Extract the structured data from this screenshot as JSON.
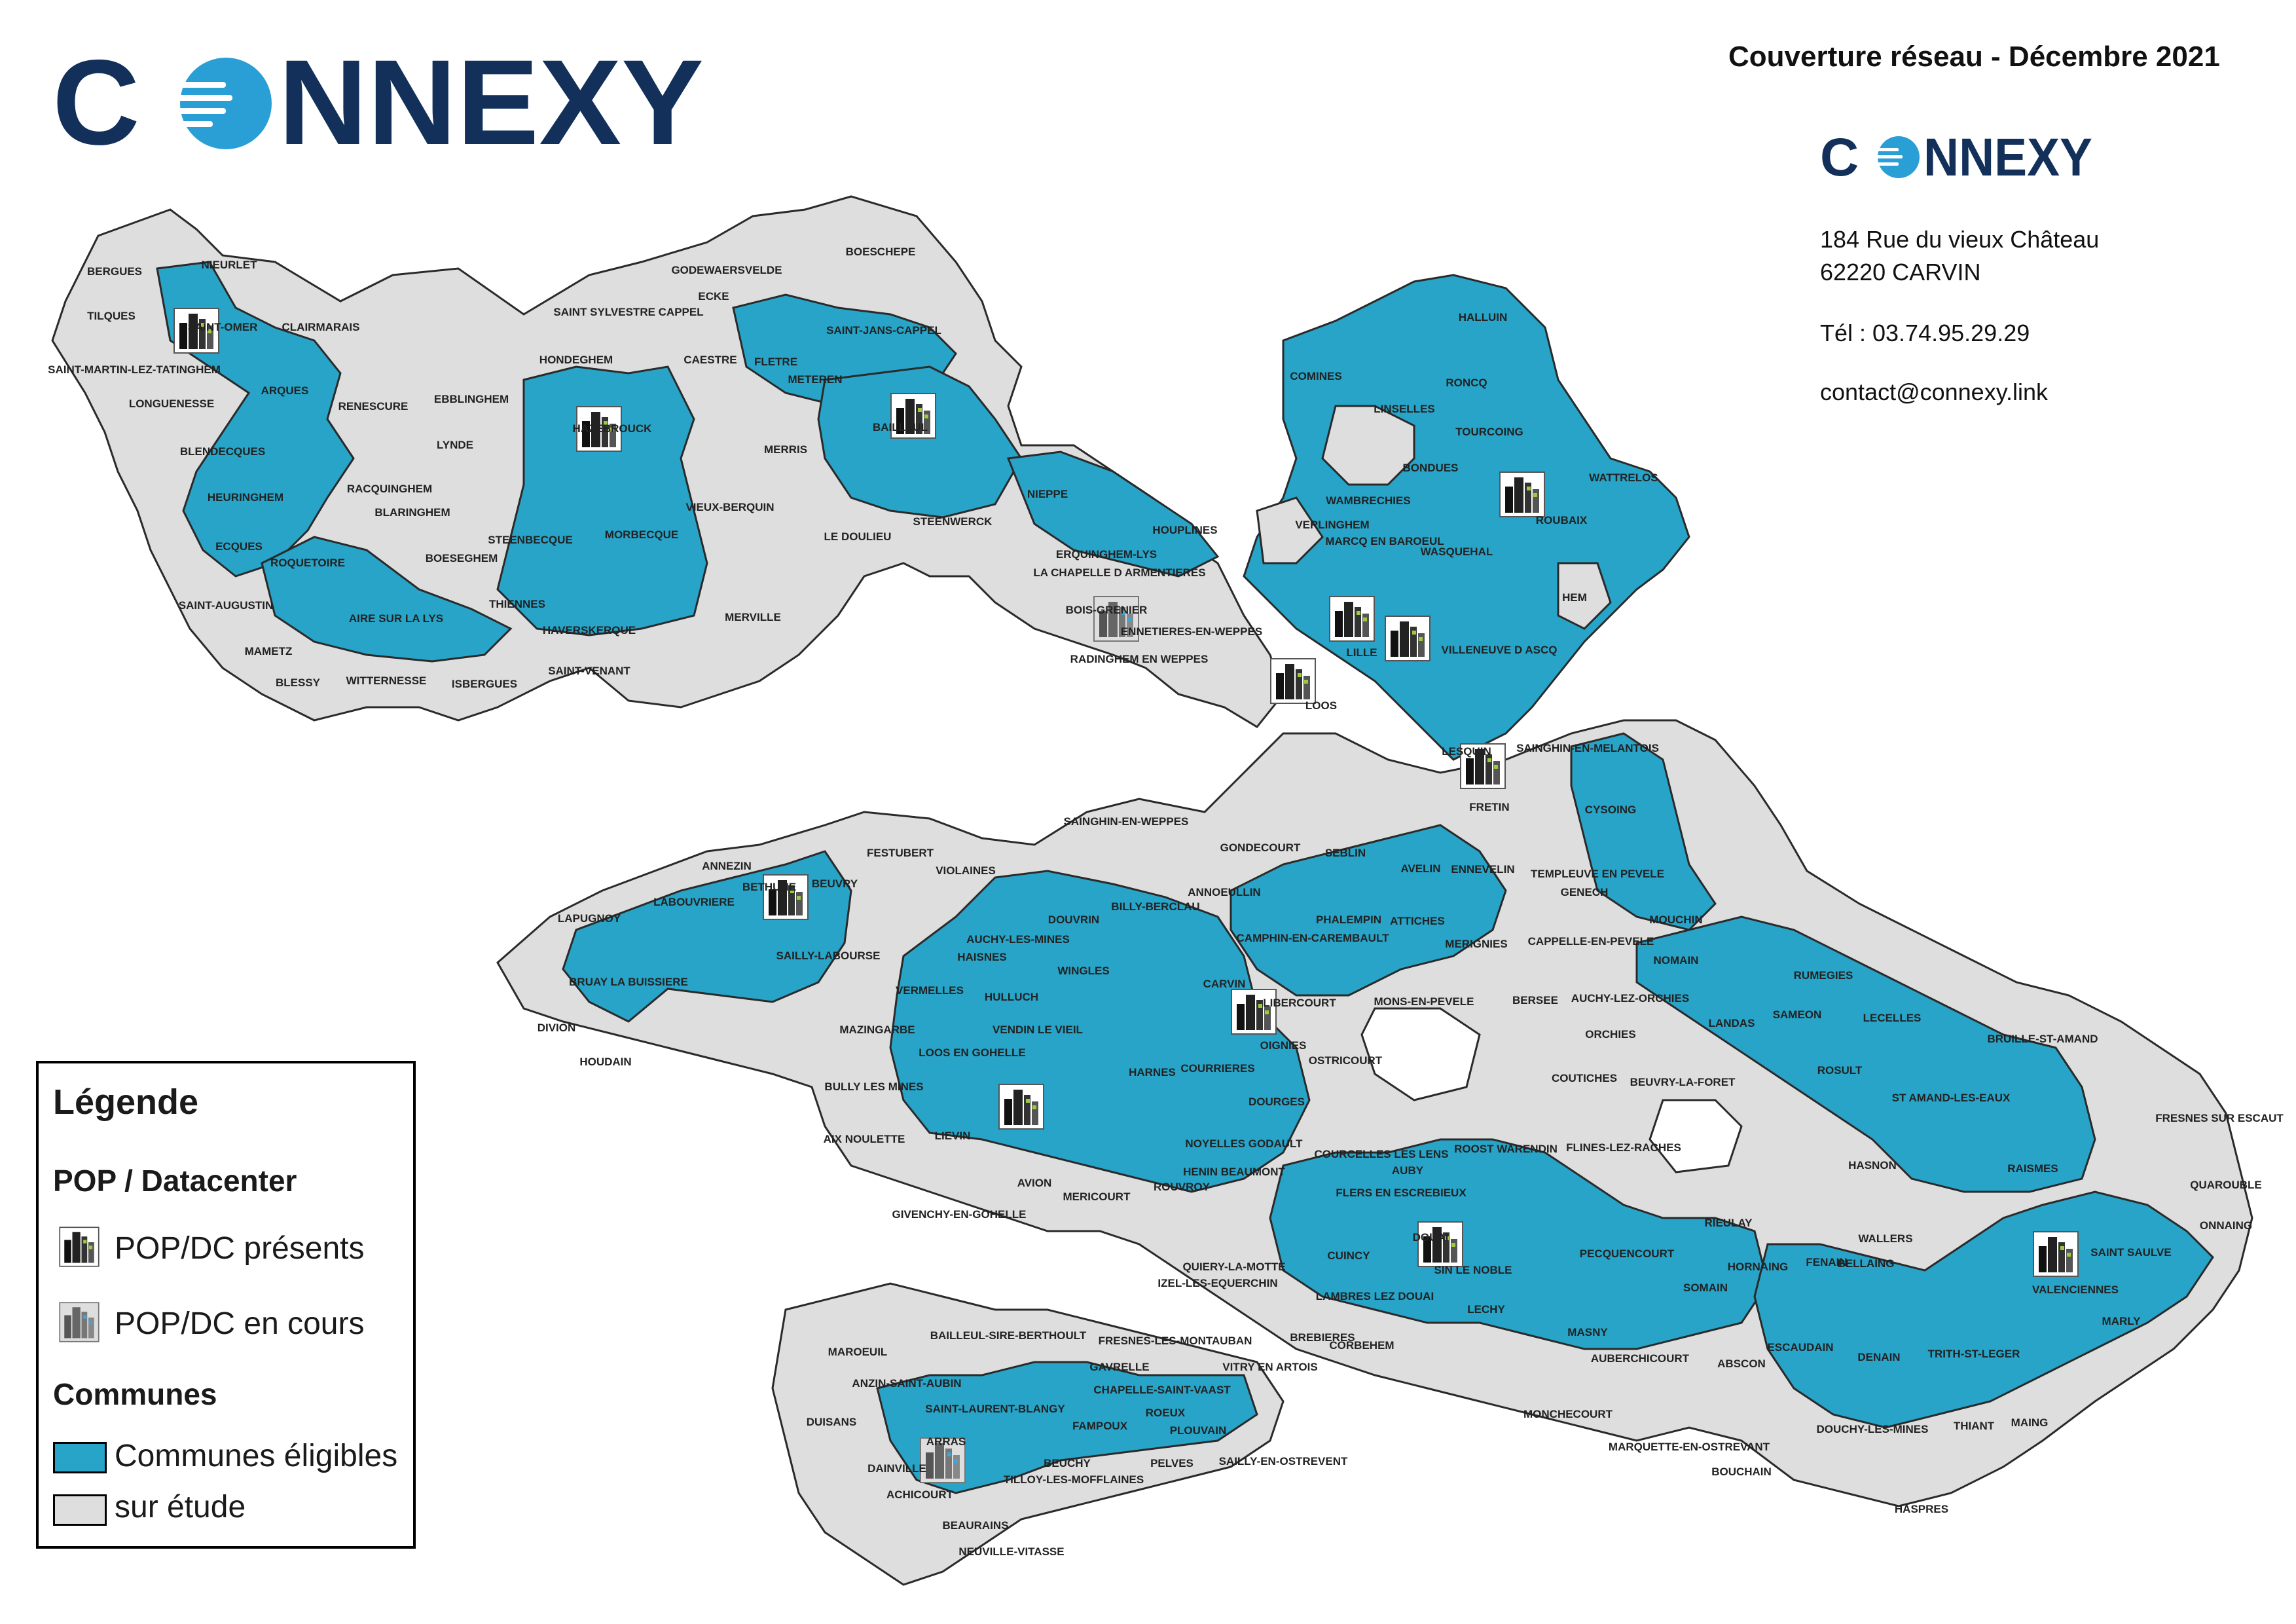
{
  "brand": {
    "name": "CONNEXY"
  },
  "header": {
    "title": "Couverture réseau - Décembre 2021"
  },
  "contact": {
    "address_line1": "184 Rue du vieux Château",
    "address_line2": "62220 CARVIN",
    "phone": "Tél : 03.74.95.29.29",
    "email": "contact@connexy.link"
  },
  "legend": {
    "title": "Légende",
    "pop_section": "POP / Datacenter",
    "pop_present": "POP/DC présents",
    "pop_in_progress": "POP/DC en cours",
    "communes_section": "Communes",
    "eligible": "Communes éligibles",
    "study": "sur étude"
  },
  "colors": {
    "eligible": "#27a4c8",
    "study": "#dedede",
    "border": "#2a2a2a",
    "brand_navy": "#12305a",
    "brand_blue": "#2a9fd6"
  },
  "map": {
    "labels": [
      "BERGUES",
      "NIEURLET",
      "TILQUES",
      "SAINT-OMER",
      "CLAIRMARAIS",
      "SAINT-MARTIN-LEZ-TATINGHEM",
      "LONGUENESSE",
      "ARQUES",
      "RENESCURE",
      "EBBLINGHEM",
      "LYNDE",
      "BLENDECQUES",
      "RACQUINGHEM",
      "HEURINGHEM",
      "BLARINGHEM",
      "ECQUES",
      "ROQUETOIRE",
      "BOESEGHEM",
      "SAINT-AUGUSTIN",
      "MAMETZ",
      "AIRE SUR LA LYS",
      "THIENNES",
      "STEENBECQUE",
      "MORBECQUE",
      "HONDEGHEM",
      "HAZEBROUCK",
      "SAINT SYLVESTRE CAPPEL",
      "GODEWAERSVELDE",
      "BOESCHEPE",
      "ECKE",
      "CAESTRE",
      "FLETRE",
      "METEREN",
      "SAINT-JANS-CAPPEL",
      "BAILLEUL",
      "MERRIS",
      "VIEUX-BERQUIN",
      "LE DOULIEU",
      "STEENWERCK",
      "NIEPPE",
      "MERVILLE",
      "HAVERSKERQUE",
      "SAINT-VENANT",
      "ISBERGUES",
      "WITTERNESSE",
      "BLESSY",
      "HOUPLINES",
      "ERQUINGHEM-LYS",
      "LA CHAPELLE D ARMENTIERES",
      "BOIS-GRENIER",
      "ENNETIERES-EN-WEPPES",
      "RADINGHEM EN WEPPES",
      "COMINES",
      "HALLUIN",
      "RONCQ",
      "LINSELLES",
      "TOURCOING",
      "BONDUES",
      "WAMBRECHIES",
      "VERLINGHEM",
      "MARCQ EN BAROEUL",
      "WASQUEHAL",
      "ROUBAIX",
      "WATTRELOS",
      "HEM",
      "LILLE",
      "VILLENEUVE D ASCQ",
      "LOOS",
      "LESQUIN",
      "SAINGHIN-EN-MELANTOIS",
      "FRETIN",
      "CYSOING",
      "SEBLIN",
      "AVELIN",
      "ENNEVELIN",
      "TEMPLEUVE EN PEVELE",
      "GENECH",
      "MOUCHIN",
      "CAPPELLE-EN-PEVELE",
      "NOMAIN",
      "ATTICHES",
      "MERIGNIES",
      "PHALEMPIN",
      "CAMPHIN-EN-CAREMBAULT",
      "MONS-EN-PEVELE",
      "BERSEE",
      "AUCHY-LEZ-ORCHIES",
      "ORCHIES",
      "LANDAS",
      "SAMEON",
      "RUMEGIES",
      "LECELLES",
      "BRUILLE-ST-AMAND",
      "ROSULT",
      "ST AMAND-LES-EAUX",
      "FRESNES SUR ESCAUT",
      "RAISMES",
      "QUAROUBLE",
      "ONNAING",
      "SAINT SAULVE",
      "VALENCIENNES",
      "MARLY",
      "HASNON",
      "WALLERS",
      "BELLAING",
      "HORNAING",
      "FENAIN",
      "BEUVRY-LA-FORET",
      "COUTICHES",
      "FLINES-LEZ-RACHES",
      "RIEULAY",
      "SOMAIN",
      "PECQUENCOURT",
      "MASNY",
      "AUBERCHICOURT",
      "ABSCON",
      "ESCAUDAIN",
      "DENAIN",
      "TRITH-ST-LEGER",
      "THIANT",
      "MAING",
      "DOUCHY-LES-MINES",
      "HASPRES",
      "BOUCHAIN",
      "MARQUETTE-EN-OSTREVANT",
      "MONCHECOURT",
      "DOUAI",
      "SIN LE NOBLE",
      "LAMBRES LEZ DOUAI",
      "CUINCY",
      "LECHY",
      "ROOST WARENDIN",
      "AUBY",
      "COURCELLES LES LENS",
      "FLERS EN ESCREBIEUX",
      "SAINGHIN-EN-WEPPES",
      "GONDECOURT",
      "ANNOEULLIN",
      "CARVIN",
      "LIBERCOURT",
      "OIGNIES",
      "OSTRICOURT",
      "DOURGES",
      "COURRIERES",
      "HARNES",
      "NOYELLES GODAULT",
      "HENIN BEAUMONT",
      "ROUVROY",
      "MERICOURT",
      "AVION",
      "GIVENCHY-EN-GOHELLE",
      "LIEVIN",
      "LOOS EN GOHELLE",
      "BULLY LES MINES",
      "AIX NOULETTE",
      "MAZINGARBE",
      "VERMELLES",
      "HULLUCH",
      "VENDIN LE VIEIL",
      "WINGLES",
      "DOUVRIN",
      "BILLY-BERCLAU",
      "AUCHY-LES-MINES",
      "HAISNES",
      "SAILLY-LABOURSE",
      "VIOLAINES",
      "FESTUBERT",
      "BEUVRY",
      "BETHUNE",
      "ANNEZIN",
      "LABOUVRIERE",
      "LAPUGNOY",
      "BRUAY LA BUISSIERE",
      "DIVION",
      "HOUDAIN",
      "QUIERY-LA-MOTTE",
      "IZEL-LES-EQUERCHIN",
      "BREBIERES",
      "VITRY EN ARTOIS",
      "CORBEHEM",
      "FRESNES-LES-MONTAUBAN",
      "GAVRELLE",
      "ROEUX",
      "PLOUVAIN",
      "SAILLY-EN-OSTREVENT",
      "PELVES",
      "FAMPOUX",
      "SAINT-LAURENT-BLANGY",
      "ARRAS",
      "ANZIN-SAINT-AUBIN",
      "MAROEUIL",
      "DUISANS",
      "DAINVILLE",
      "ACHICOURT",
      "BEAURAINS",
      "NEUVILLE-VITASSE",
      "TILLOY-LES-MOFFLAINES",
      "BEUCHY",
      "BAILLEUL-SIRE-BERTHOULT",
      "CHAPELLE-SAINT-VAAST"
    ]
  }
}
